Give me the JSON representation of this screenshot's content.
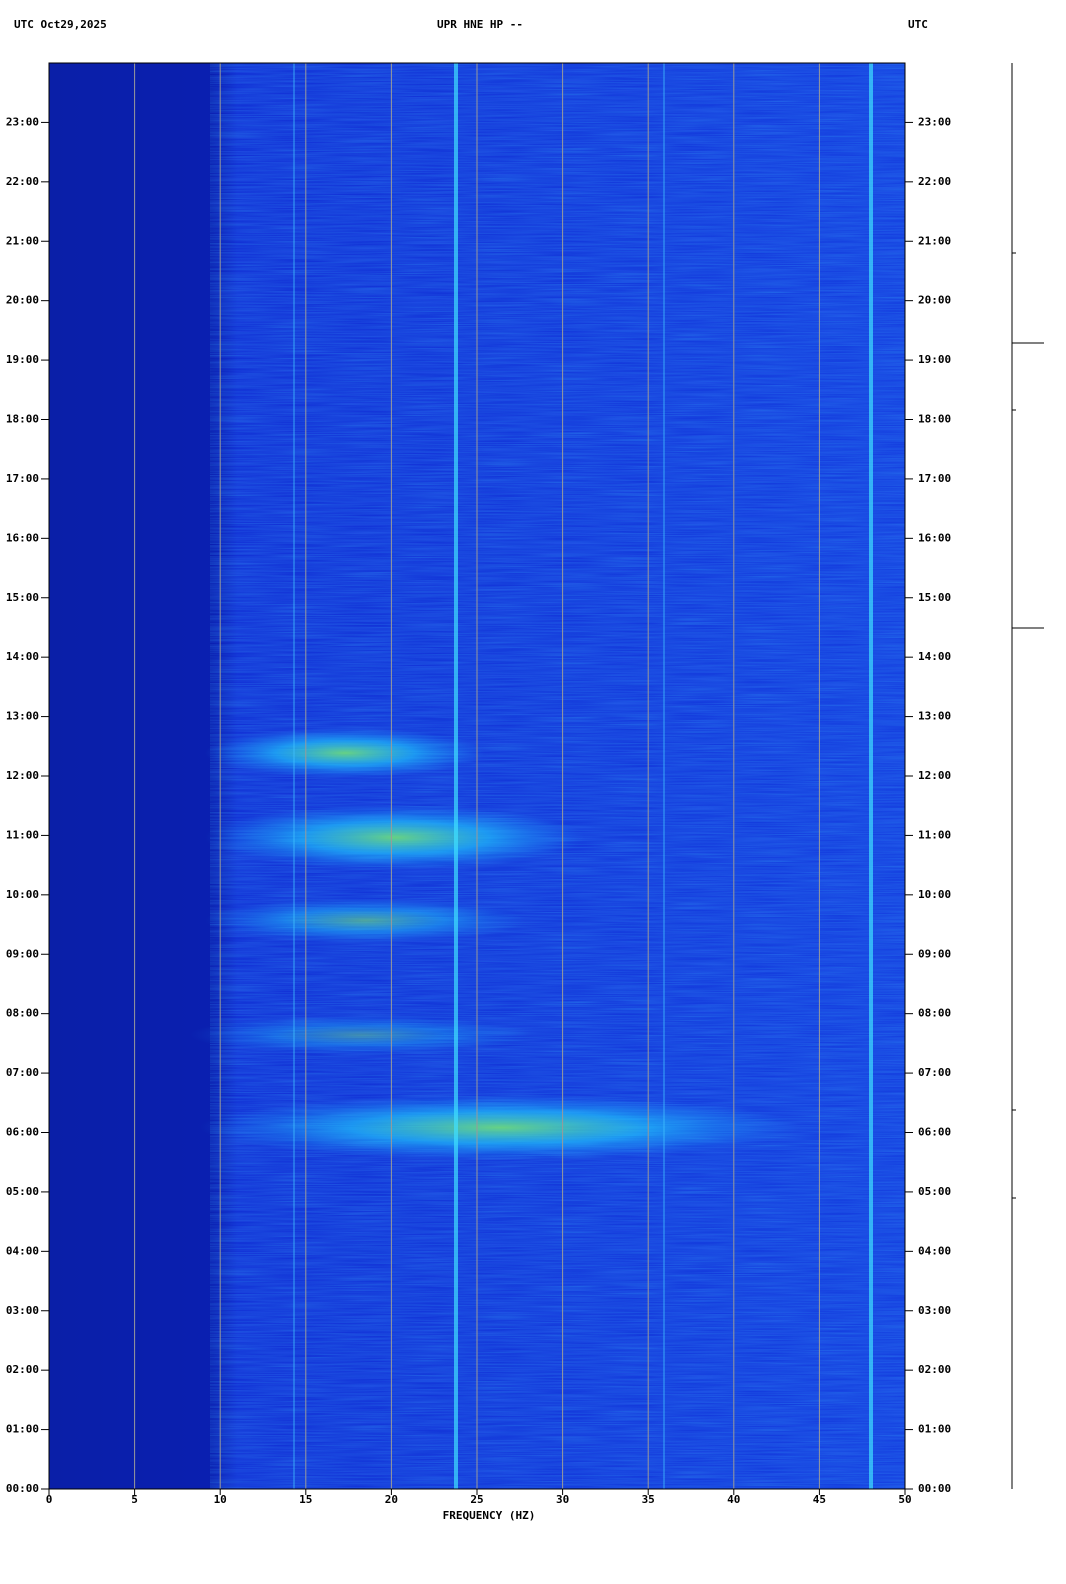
{
  "chart_data": {
    "type": "spectrogram",
    "title": "UPR HNE HP --",
    "date_label": "UTC  Oct29,2025",
    "right_label": "UTC",
    "x_label": "FREQUENCY (HZ)",
    "xlim": [
      0,
      50
    ],
    "xticks": [
      0,
      5,
      10,
      15,
      20,
      25,
      30,
      35,
      40,
      45,
      50
    ],
    "ylim": [
      0,
      24
    ],
    "yticks": [
      {
        "value": 0,
        "label": "00:00"
      },
      {
        "value": 1,
        "label": "01:00"
      },
      {
        "value": 2,
        "label": "02:00"
      },
      {
        "value": 3,
        "label": "03:00"
      },
      {
        "value": 4,
        "label": "04:00"
      },
      {
        "value": 5,
        "label": "05:00"
      },
      {
        "value": 6,
        "label": "06:00"
      },
      {
        "value": 7,
        "label": "07:00"
      },
      {
        "value": 8,
        "label": "08:00"
      },
      {
        "value": 9,
        "label": "09:00"
      },
      {
        "value": 10,
        "label": "10:00"
      },
      {
        "value": 11,
        "label": "11:00"
      },
      {
        "value": 12,
        "label": "12:00"
      },
      {
        "value": 13,
        "label": "13:00"
      },
      {
        "value": 14,
        "label": "14:00"
      },
      {
        "value": 15,
        "label": "15:00"
      },
      {
        "value": 16,
        "label": "16:00"
      },
      {
        "value": 17,
        "label": "17:00"
      },
      {
        "value": 18,
        "label": "18:00"
      },
      {
        "value": 19,
        "label": "19:00"
      },
      {
        "value": 20,
        "label": "20:00"
      },
      {
        "value": 21,
        "label": "21:00"
      },
      {
        "value": 22,
        "label": "22:00"
      },
      {
        "value": 23,
        "label": "23:00"
      }
    ],
    "grid": true
  }
}
